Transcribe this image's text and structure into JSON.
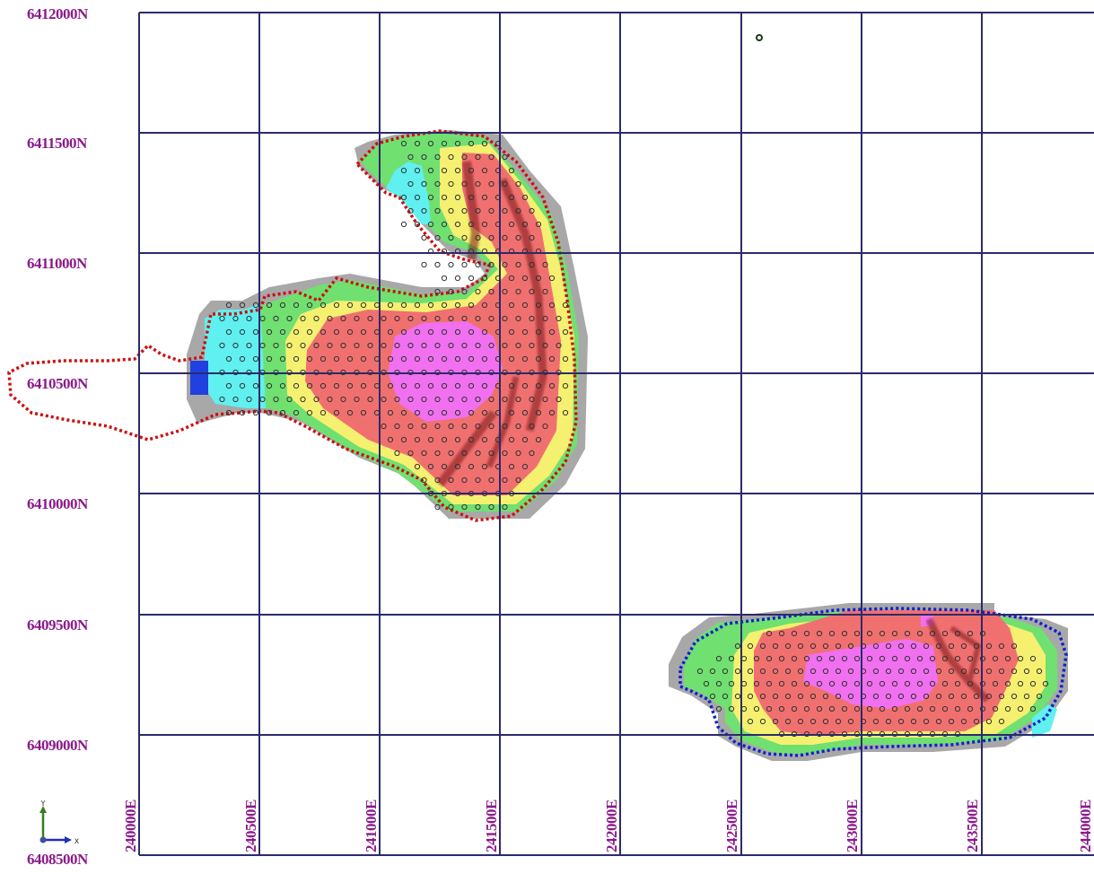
{
  "map": {
    "grid": {
      "northing_labels": [
        "6412000N",
        "6411500N",
        "6411000N",
        "6410500N",
        "6410000N",
        "6409500N",
        "6409000N",
        "6408500N"
      ],
      "easting_labels": [
        "240000E",
        "240500E",
        "241000E",
        "241500E",
        "242000E",
        "242500E",
        "243000E",
        "243500E",
        "244000E"
      ]
    },
    "axis_indicator": {
      "y_label": "Y",
      "x_label": "x"
    },
    "colors": {
      "grid_line": "#2b2b6b",
      "label": "#8b1a8b",
      "red_zone": "#f07070",
      "magenta_zone": "#f070f0",
      "yellow_zone": "#f5f070",
      "green_zone": "#70e070",
      "cyan_zone": "#60f0f0",
      "grey_zone": "#a8a8a8",
      "red_boundary": "#cc1010",
      "blue_boundary": "#1020cc"
    }
  }
}
